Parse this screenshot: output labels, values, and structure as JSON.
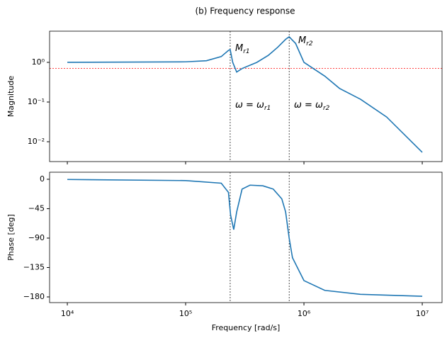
{
  "title": "(b) Frequency response",
  "chart_data": [
    {
      "type": "line",
      "ylabel": "Magnitude",
      "log_x": true,
      "log_y": true,
      "color": "#1f77b4",
      "x": [
        10000,
        100000,
        150000,
        200000,
        230000,
        238000,
        250000,
        270000,
        300000,
        400000,
        500000,
        600000,
        700000,
        750000,
        850000,
        1000000,
        1500000,
        2000000,
        3000000,
        5000000,
        10000000
      ],
      "values": [
        1.0,
        1.03,
        1.1,
        1.4,
        2.0,
        2.1,
        1.0,
        0.57,
        0.7,
        1.0,
        1.5,
        2.4,
        3.8,
        4.4,
        3.0,
        1.0,
        0.45,
        0.22,
        0.118,
        0.042,
        0.0054
      ],
      "xlim": [
        7080,
        14700000
      ],
      "ylim": [
        0.00316,
        6.1
      ],
      "yticks": [
        {
          "value": 1,
          "label": "10⁰"
        },
        {
          "value": 0.1,
          "label": "10⁻¹"
        },
        {
          "value": 0.01,
          "label": "10⁻²"
        }
      ],
      "vlines": [
        238000,
        750000
      ],
      "hline": 0.707,
      "annotations": [
        {
          "text": "M",
          "sub": "r1"
        },
        {
          "text": "M",
          "sub": "r2"
        },
        {
          "text": "ω = ω",
          "sub": "r1"
        },
        {
          "text": "ω = ω",
          "sub": "r2"
        }
      ]
    },
    {
      "type": "line",
      "ylabel": "Phase [deg]",
      "xlabel": "Frequency [rad/s]",
      "log_x": true,
      "color": "#1f77b4",
      "x": [
        10000,
        100000,
        200000,
        230000,
        240000,
        255000,
        270000,
        300000,
        350000,
        450000,
        550000,
        650000,
        700000,
        750000,
        800000,
        1000000,
        1500000,
        3000000,
        10000000
      ],
      "values": [
        -0.3,
        -2,
        -6,
        -20,
        -55,
        -77,
        -50,
        -15,
        -9,
        -10,
        -15,
        -30,
        -50,
        -90,
        -120,
        -155,
        -170,
        -176,
        -179
      ],
      "xlim": [
        7080,
        14700000
      ],
      "ylim": [
        -188.7,
        10.8
      ],
      "xticks": [
        {
          "value": 10000,
          "label": "10⁴"
        },
        {
          "value": 100000,
          "label": "10⁵"
        },
        {
          "value": 1000000,
          "label": "10⁶"
        },
        {
          "value": 10000000,
          "label": "10⁷"
        }
      ],
      "yticks": [
        0,
        {
          "value": -45,
          "label": "−45"
        },
        {
          "value": -90,
          "label": "−90"
        },
        {
          "value": -135,
          "label": "−135"
        },
        {
          "value": -180,
          "label": "−180"
        }
      ],
      "vlines": [
        238000,
        750000
      ]
    }
  ]
}
